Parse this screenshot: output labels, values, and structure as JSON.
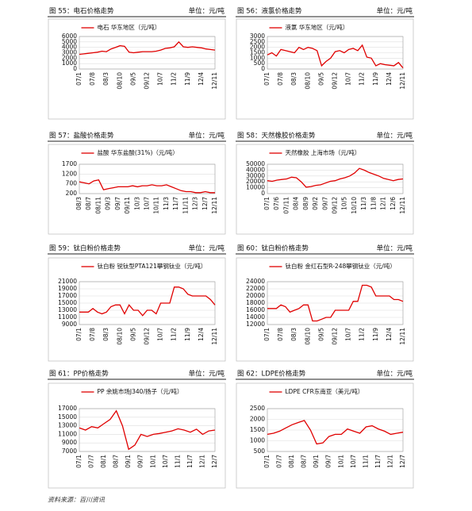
{
  "chart_data": [
    {
      "type": "line",
      "title": "图 55：电石价格走势",
      "unit": "单位：元/吨",
      "categories": [
        "07/1",
        null,
        null,
        "07/8",
        null,
        null,
        "08/3",
        null,
        null,
        "08/10",
        null,
        null,
        "09/5",
        null,
        null,
        "09/12",
        null,
        null,
        "10/7",
        null,
        null,
        "11/2",
        null,
        null,
        "11/9",
        null,
        null,
        "12/4",
        null,
        null,
        "12/11"
      ],
      "series": [
        {
          "name": "电石 华东地区（元/吨）",
          "color": "#e00000",
          "values": [
            2700,
            2800,
            2900,
            3000,
            3100,
            3300,
            3200,
            3700,
            4000,
            4300,
            4200,
            3100,
            3000,
            3100,
            3200,
            3200,
            3200,
            3300,
            3500,
            3800,
            3900,
            4100,
            5000,
            4100,
            4000,
            4100,
            4000,
            3900,
            3700,
            3600,
            3500
          ]
        }
      ],
      "ylim": [
        0,
        6000
      ],
      "yticks": [
        0,
        1000,
        2000,
        3000,
        4000,
        5000,
        6000
      ],
      "grid": true
    },
    {
      "type": "line",
      "title": "图 56：液氯价格走势",
      "unit": "单位：元/吨",
      "categories": [
        "07/1",
        null,
        null,
        "07/8",
        null,
        null,
        "08/3",
        null,
        null,
        "08/10",
        null,
        null,
        "09/5",
        null,
        null,
        "09/12",
        null,
        null,
        "10/7",
        null,
        null,
        "11/2",
        null,
        null,
        "11/9",
        null,
        null,
        "12/4",
        null,
        null,
        "12/11"
      ],
      "series": [
        {
          "name": "液氯 华东地区（元/吨）",
          "color": "#e00000",
          "values": [
            1300,
            1500,
            1200,
            1800,
            1700,
            1600,
            1500,
            2000,
            1800,
            2000,
            1900,
            1700,
            300,
            700,
            1000,
            1600,
            1700,
            1500,
            1800,
            1900,
            1700,
            2200,
            1100,
            1000,
            300,
            500,
            400,
            350,
            300,
            600,
            100
          ]
        }
      ],
      "ylim": [
        0,
        3000
      ],
      "yticks": [
        0,
        500,
        1000,
        1500,
        2000,
        2500,
        3000
      ],
      "grid": true
    },
    {
      "type": "line",
      "title": "图 57：盐酸价格走势",
      "unit": "单位：元/吨",
      "categories": [
        "08/3",
        null,
        "08/7",
        null,
        "08/11",
        null,
        "09/3",
        null,
        "09/7",
        null,
        "09/11",
        null,
        "10/3",
        null,
        "10/7",
        null,
        "10/11",
        null,
        "11/3",
        null,
        "11/7",
        null,
        "11/11",
        null,
        "12/3",
        null,
        "12/7",
        null,
        "12/11"
      ],
      "series": [
        {
          "name": "盐酸 华东盐酸(31%)（元/吨）",
          "color": "#e00000",
          "values": [
            800,
            750,
            700,
            850,
            900,
            400,
            450,
            500,
            550,
            550,
            550,
            600,
            550,
            600,
            600,
            650,
            600,
            600,
            650,
            550,
            450,
            350,
            300,
            300,
            250,
            250,
            300,
            250,
            250
          ]
        }
      ],
      "ylim": [
        200,
        1700
      ],
      "yticks": [
        200,
        700,
        1200,
        1700
      ],
      "grid": true
    },
    {
      "type": "line",
      "title": "图 58：天然橡胶价格走势",
      "unit": "单位：元/吨",
      "categories": [
        "07/1",
        null,
        "07/6",
        null,
        "07/11",
        null,
        "08/4",
        null,
        "08/9",
        null,
        "09/2",
        null,
        "09/7",
        null,
        "09/12",
        null,
        "10/5",
        null,
        "10/10",
        null,
        "11/3",
        null,
        "11/8",
        null,
        "12/1",
        null,
        "12/6",
        null,
        "12/11"
      ],
      "series": [
        {
          "name": "天然橡胶 上海市场（元/吨）",
          "color": "#e00000",
          "values": [
            22000,
            21000,
            23000,
            24000,
            25000,
            28000,
            27000,
            20000,
            11000,
            12000,
            14000,
            15000,
            18000,
            21000,
            22000,
            25000,
            27000,
            30000,
            35000,
            43000,
            40000,
            36000,
            33000,
            30000,
            26000,
            24000,
            22000,
            24000,
            25000
          ]
        }
      ],
      "ylim": [
        0,
        50000
      ],
      "yticks": [
        0,
        10000,
        20000,
        30000,
        40000,
        50000
      ],
      "grid": true
    },
    {
      "type": "line",
      "title": "图 59：钛白粉价格走势",
      "unit": "单位：元/吨",
      "categories": [
        "07/1",
        null,
        null,
        "07/8",
        null,
        null,
        "08/3",
        null,
        null,
        "08/10",
        null,
        null,
        "09/5",
        null,
        null,
        "09/12",
        null,
        null,
        "10/7",
        null,
        null,
        "11/2",
        null,
        null,
        "11/9",
        null,
        null,
        "12/4",
        null,
        null,
        "12/11"
      ],
      "series": [
        {
          "name": "钛白粉 锐钛型PTA121攀钢钛业（元/吨）",
          "color": "#e00000",
          "values": [
            12500,
            12500,
            12500,
            13500,
            12500,
            12000,
            12500,
            14000,
            14500,
            14500,
            12000,
            14500,
            13000,
            13000,
            11500,
            13000,
            13000,
            12000,
            15000,
            15000,
            15000,
            19500,
            19500,
            19000,
            17500,
            17000,
            17000,
            17000,
            17000,
            16000,
            14500
          ]
        }
      ],
      "ylim": [
        9000,
        21000
      ],
      "yticks": [
        9000,
        11000,
        13000,
        15000,
        17000,
        19000,
        21000
      ],
      "grid": true
    },
    {
      "type": "line",
      "title": "图 60：钛白粉价格走势",
      "unit": "单位：元/吨",
      "categories": [
        "07/1",
        null,
        null,
        "07/8",
        null,
        null,
        "08/3",
        null,
        null,
        "08/10",
        null,
        null,
        "09/5",
        null,
        null,
        "09/12",
        null,
        null,
        "10/7",
        null,
        null,
        "11/2",
        null,
        null,
        "11/9",
        null,
        null,
        "12/4",
        null,
        null,
        "12/11"
      ],
      "series": [
        {
          "name": "钛白粉 金红石型R-248攀钢钛业（元/吨）",
          "color": "#e00000",
          "values": [
            16500,
            16500,
            16500,
            17500,
            17000,
            15500,
            16000,
            16500,
            17500,
            17500,
            13000,
            13000,
            13500,
            14000,
            14000,
            16000,
            16000,
            16000,
            16000,
            18500,
            18500,
            23000,
            23000,
            22500,
            20000,
            20000,
            20000,
            20000,
            19000,
            19000,
            18500
          ]
        }
      ],
      "ylim": [
        12000,
        24000
      ],
      "yticks": [
        12000,
        14000,
        16000,
        18000,
        20000,
        22000,
        24000
      ],
      "grid": true
    },
    {
      "type": "line",
      "title": "图 61：PP价格走势",
      "unit": "单位：元/吨",
      "categories": [
        "07/1",
        null,
        "07/7",
        null,
        "08/1",
        null,
        "08/7",
        null,
        "09/1",
        null,
        "09/7",
        null,
        "10/1",
        null,
        "10/7",
        null,
        "11/1",
        null,
        "11/7",
        null,
        "12/1",
        null,
        "12/7"
      ],
      "series": [
        {
          "name": "PP 余姚市场J340/扬子（元/吨）",
          "color": "#e00000",
          "values": [
            12500,
            12000,
            12800,
            12500,
            13500,
            14500,
            16500,
            13000,
            7500,
            8500,
            11000,
            10500,
            11000,
            11200,
            11500,
            11800,
            12300,
            12000,
            11500,
            12200,
            11000,
            11800,
            12000
          ]
        }
      ],
      "ylim": [
        7000,
        17000
      ],
      "yticks": [
        7000,
        9000,
        11000,
        13000,
        15000,
        17000
      ],
      "grid": true
    },
    {
      "type": "line",
      "title": "图 62：LDPE价格走势",
      "unit": "单位：元/吨",
      "categories": [
        "07/1",
        null,
        "07/7",
        null,
        "08/1",
        null,
        "08/7",
        null,
        "09/1",
        null,
        "09/7",
        null,
        "10/1",
        null,
        "10/7",
        null,
        "11/1",
        null,
        "11/7",
        null,
        "12/1",
        null,
        "12/7"
      ],
      "series": [
        {
          "name": "LDPE CFR东南亚（美元/吨）",
          "color": "#e00000",
          "values": [
            1300,
            1350,
            1450,
            1600,
            1750,
            1850,
            1950,
            1500,
            850,
            900,
            1200,
            1300,
            1300,
            1550,
            1450,
            1350,
            1650,
            1700,
            1550,
            1450,
            1300,
            1350,
            1400
          ]
        }
      ],
      "ylim": [
        500,
        2500
      ],
      "yticks": [
        500,
        1000,
        1500,
        2000,
        2500
      ],
      "grid": true
    }
  ],
  "source": "资料来源：百川资讯"
}
